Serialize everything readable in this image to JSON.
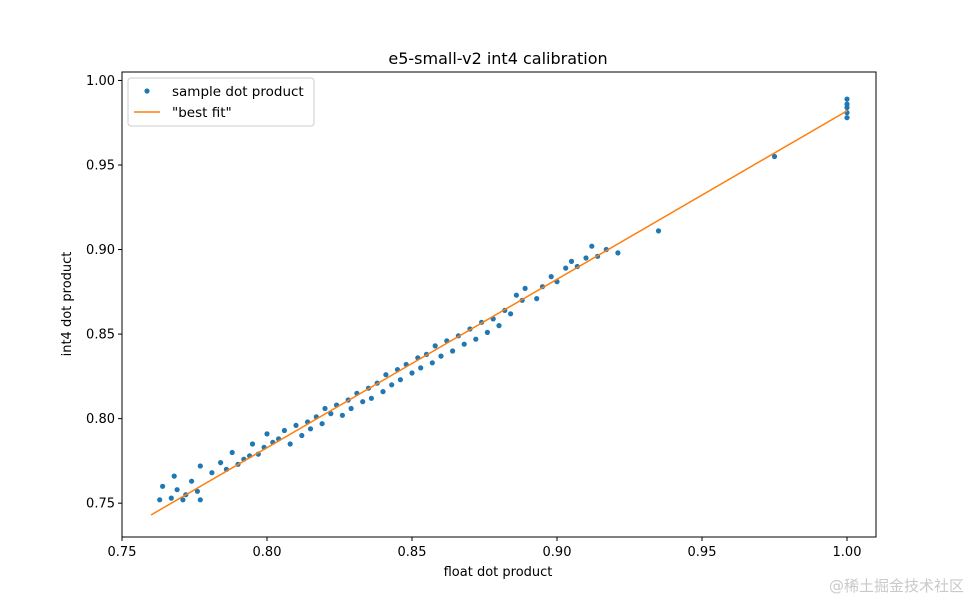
{
  "chart_data": {
    "type": "scatter",
    "title": "e5-small-v2 int4 calibration",
    "xlabel": "float dot product",
    "ylabel": "int4 dot product",
    "xlim": [
      0.75,
      1.01
    ],
    "ylim": [
      0.73,
      1.005
    ],
    "xticks": [
      0.75,
      0.8,
      0.85,
      0.9,
      0.95,
      1.0
    ],
    "xtick_labels": [
      "0.75",
      "0.80",
      "0.85",
      "0.90",
      "0.95",
      "1.00"
    ],
    "yticks": [
      0.75,
      0.8,
      0.85,
      0.9,
      0.95,
      1.0
    ],
    "ytick_labels": [
      "0.75",
      "0.80",
      "0.85",
      "0.90",
      "0.95",
      "1.00"
    ],
    "legend_position": "top-left",
    "colors": {
      "points": "#1f77b4",
      "fit": "#ff7f0e"
    },
    "series": [
      {
        "name": "sample dot product",
        "kind": "scatter",
        "points": [
          [
            0.763,
            0.752
          ],
          [
            0.764,
            0.76
          ],
          [
            0.767,
            0.753
          ],
          [
            0.768,
            0.766
          ],
          [
            0.769,
            0.758
          ],
          [
            0.771,
            0.752
          ],
          [
            0.772,
            0.755
          ],
          [
            0.774,
            0.763
          ],
          [
            0.776,
            0.757
          ],
          [
            0.777,
            0.752
          ],
          [
            0.777,
            0.772
          ],
          [
            0.781,
            0.768
          ],
          [
            0.784,
            0.774
          ],
          [
            0.786,
            0.77
          ],
          [
            0.788,
            0.78
          ],
          [
            0.79,
            0.773
          ],
          [
            0.792,
            0.776
          ],
          [
            0.794,
            0.778
          ],
          [
            0.795,
            0.785
          ],
          [
            0.797,
            0.779
          ],
          [
            0.799,
            0.783
          ],
          [
            0.8,
            0.791
          ],
          [
            0.802,
            0.786
          ],
          [
            0.804,
            0.788
          ],
          [
            0.806,
            0.793
          ],
          [
            0.808,
            0.785
          ],
          [
            0.81,
            0.796
          ],
          [
            0.812,
            0.79
          ],
          [
            0.814,
            0.798
          ],
          [
            0.815,
            0.794
          ],
          [
            0.817,
            0.801
          ],
          [
            0.819,
            0.797
          ],
          [
            0.82,
            0.806
          ],
          [
            0.822,
            0.803
          ],
          [
            0.824,
            0.808
          ],
          [
            0.826,
            0.802
          ],
          [
            0.828,
            0.811
          ],
          [
            0.829,
            0.806
          ],
          [
            0.831,
            0.815
          ],
          [
            0.833,
            0.81
          ],
          [
            0.835,
            0.818
          ],
          [
            0.836,
            0.812
          ],
          [
            0.838,
            0.821
          ],
          [
            0.84,
            0.816
          ],
          [
            0.841,
            0.826
          ],
          [
            0.843,
            0.82
          ],
          [
            0.845,
            0.829
          ],
          [
            0.846,
            0.823
          ],
          [
            0.848,
            0.832
          ],
          [
            0.85,
            0.827
          ],
          [
            0.852,
            0.836
          ],
          [
            0.853,
            0.83
          ],
          [
            0.855,
            0.838
          ],
          [
            0.857,
            0.833
          ],
          [
            0.858,
            0.843
          ],
          [
            0.86,
            0.837
          ],
          [
            0.862,
            0.846
          ],
          [
            0.864,
            0.84
          ],
          [
            0.866,
            0.849
          ],
          [
            0.868,
            0.844
          ],
          [
            0.87,
            0.853
          ],
          [
            0.872,
            0.847
          ],
          [
            0.874,
            0.857
          ],
          [
            0.876,
            0.851
          ],
          [
            0.878,
            0.859
          ],
          [
            0.88,
            0.855
          ],
          [
            0.882,
            0.864
          ],
          [
            0.884,
            0.862
          ],
          [
            0.886,
            0.873
          ],
          [
            0.888,
            0.87
          ],
          [
            0.889,
            0.877
          ],
          [
            0.893,
            0.871
          ],
          [
            0.895,
            0.878
          ],
          [
            0.898,
            0.884
          ],
          [
            0.9,
            0.881
          ],
          [
            0.903,
            0.889
          ],
          [
            0.905,
            0.893
          ],
          [
            0.907,
            0.89
          ],
          [
            0.91,
            0.895
          ],
          [
            0.912,
            0.902
          ],
          [
            0.914,
            0.896
          ],
          [
            0.917,
            0.9
          ],
          [
            0.921,
            0.898
          ],
          [
            0.935,
            0.911
          ],
          [
            0.975,
            0.955
          ],
          [
            1.0,
            0.978
          ],
          [
            1.0,
            0.981
          ],
          [
            1.0,
            0.984
          ],
          [
            1.0,
            0.986
          ],
          [
            1.0,
            0.989
          ]
        ]
      },
      {
        "name": "\"best fit\"",
        "kind": "line",
        "x": [
          0.76,
          1.0
        ],
        "y": [
          0.743,
          0.982
        ]
      }
    ]
  },
  "watermark": "@稀土掘金技术社区"
}
